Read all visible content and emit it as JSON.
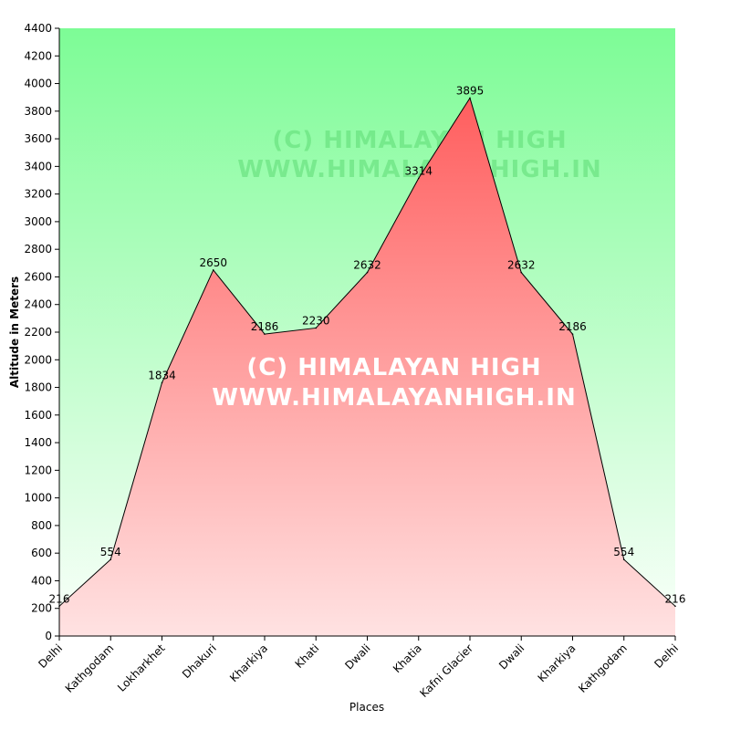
{
  "chart_data": {
    "type": "area",
    "categories": [
      "Delhi",
      "Kathgodam",
      "Lokharkhet",
      "Dhakuri",
      "Kharkiya",
      "Khati",
      "Dwali",
      "Khatia",
      "Kafni Glacier",
      "Dwali",
      "Kharkiya",
      "Kathgodam",
      "Delhi"
    ],
    "series": [
      {
        "values": [
          216,
          554,
          1834,
          2650,
          2186,
          2230,
          2632,
          3314,
          3895,
          2632,
          2186,
          554,
          216
        ]
      }
    ],
    "xlabel": "Places",
    "ylabel": "Altitude in Meters",
    "ylim": [
      0,
      4400
    ],
    "ytick_step": 200,
    "grid": false,
    "colors": {
      "area_top": "#ff5e5e",
      "area_bottom": "#ffe2e2",
      "bg_top": "#7dfc96",
      "bg_bottom": "#fbfffb",
      "line": "#000000"
    }
  },
  "watermark": {
    "line1": "(C) HIMALAYAN HIGH",
    "line2": "WWW.HIMALAYANHIGH.IN"
  }
}
